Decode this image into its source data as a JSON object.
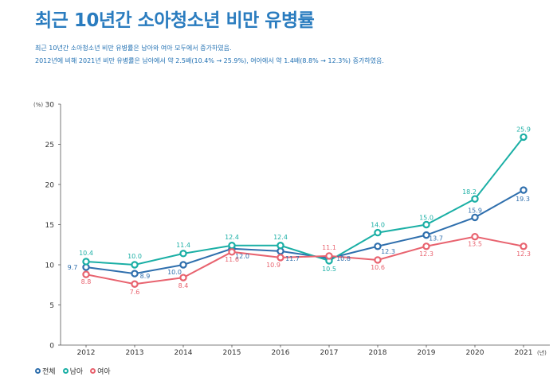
{
  "title": "최근 10년간 소아청소년 비만 유병률",
  "description": [
    "최근 10년간 소아청소년 비만 유병률은 남아와 여아 모두에서 증가하였음.",
    "2012년에 비해 2021년 비만 유병률은 남아에서 약 2.5배(10.4% → 25.9%), 여아에서 약 1.4배(8.8% → 12.3%) 증가하였음."
  ],
  "chart_data": {
    "type": "line",
    "title": "최근 10년간 소아청소년 비만 유병률",
    "x": [
      "2012",
      "2013",
      "2014",
      "2015",
      "2016",
      "2017",
      "2018",
      "2019",
      "2020",
      "2021"
    ],
    "xlabel": "(년)",
    "ylabel": "(%)",
    "ylim": [
      0,
      30
    ],
    "yticks": [
      "0",
      "5",
      "10",
      "15",
      "20",
      "25",
      "30"
    ],
    "grid": false,
    "legend_position": "bottom-left",
    "series": [
      {
        "name": "전체",
        "color": "#2f6fad",
        "values": [
          9.7,
          8.9,
          10.0,
          12.0,
          11.7,
          10.8,
          12.3,
          13.7,
          15.9,
          19.3
        ],
        "labels": [
          "9.7",
          "8.9",
          "10.0",
          "12.0",
          "11.7",
          "10.8",
          "12.3",
          "13.7",
          "15.9",
          "19.3"
        ]
      },
      {
        "name": "남아",
        "color": "#1aafa5",
        "values": [
          10.4,
          10.0,
          11.4,
          12.4,
          12.4,
          10.5,
          14.0,
          15.0,
          18.2,
          25.9
        ],
        "labels": [
          "10.4",
          "10.0",
          "11.4",
          "12.4",
          "12.4",
          "10.5",
          "14.0",
          "15.0",
          "18.2",
          "25.9"
        ]
      },
      {
        "name": "여아",
        "color": "#e8636f",
        "values": [
          8.8,
          7.6,
          8.4,
          11.6,
          10.9,
          11.1,
          10.6,
          12.3,
          13.5,
          12.3
        ],
        "labels": [
          "8.8",
          "7.6",
          "8.4",
          "11.6",
          "10.9",
          "11.1",
          "10.6",
          "12.3",
          "13.5",
          "12.3"
        ]
      }
    ]
  }
}
